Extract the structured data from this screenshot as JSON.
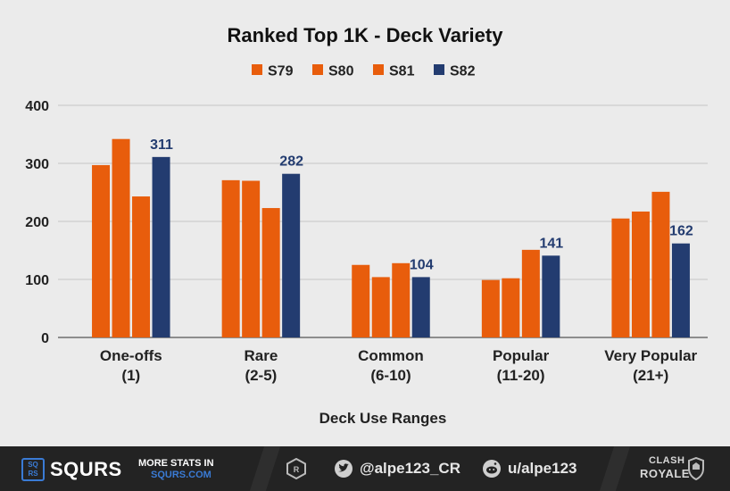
{
  "colors": {
    "orange": "#e85d0c",
    "navy": "#233c70",
    "grid": "#c4c4c4",
    "text": "#222222",
    "footer_bg": "#232323",
    "logo_blue": "#3a7bd5"
  },
  "chart_data": {
    "type": "bar",
    "title": "Ranked Top 1K - Deck Variety",
    "xlabel": "Deck Use Ranges",
    "ylabel": "",
    "ylim": [
      0,
      400
    ],
    "yticks": [
      "0",
      "100",
      "200",
      "300",
      "400"
    ],
    "grid": true,
    "legend_position": "top",
    "categories": [
      [
        "One-offs",
        "(1)"
      ],
      [
        "Rare",
        "(2-5)"
      ],
      [
        "Common",
        "(6-10)"
      ],
      [
        "Popular",
        "(11-20)"
      ],
      [
        "Very Popular",
        "(21+)"
      ]
    ],
    "series": [
      {
        "name": "S79",
        "color": "#e85d0c",
        "values": [
          297,
          271,
          125,
          99,
          205
        ],
        "show_labels": false
      },
      {
        "name": "S80",
        "color": "#e85d0c",
        "values": [
          342,
          270,
          104,
          102,
          217
        ],
        "show_labels": false
      },
      {
        "name": "S81",
        "color": "#e85d0c",
        "values": [
          243,
          223,
          128,
          151,
          251
        ],
        "show_labels": false
      },
      {
        "name": "S82",
        "color": "#233c70",
        "values": [
          311,
          282,
          104,
          141,
          162
        ],
        "show_labels": true
      }
    ]
  },
  "footer": {
    "logo_box_top": "SQ",
    "logo_box_bottom": "RS",
    "logo_text": "SQURS",
    "promo_line1": "MORE STATS IN",
    "promo_line2": "SQURS.COM",
    "twitter_handle": "@alpe123_CR",
    "reddit_handle": "u/alpe123",
    "game_logo_line1": "CLASH",
    "game_logo_line2": "ROYALE"
  }
}
